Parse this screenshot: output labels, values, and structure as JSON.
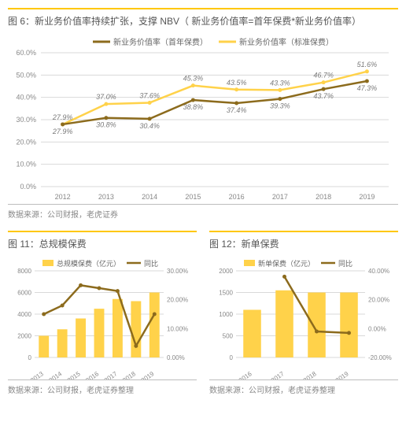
{
  "fig6": {
    "title": "图 6：新业务价值率持续扩张，支撑 NBV（ 新业务价值率=首年保费*新业务价值率）",
    "type": "line",
    "legend": {
      "s1": "新业务价值率（首年保费）",
      "s2": "新业务价值率（标准保费）"
    },
    "categories": [
      "2012",
      "2013",
      "2014",
      "2015",
      "2016",
      "2017",
      "2018",
      "2019"
    ],
    "series1": [
      27.9,
      30.8,
      30.4,
      38.8,
      37.4,
      39.3,
      43.7,
      47.3
    ],
    "series2": [
      27.9,
      37.0,
      37.6,
      45.3,
      43.5,
      43.3,
      46.7,
      51.6
    ],
    "colors": {
      "s1": "#8c6b1d",
      "s2": "#ffd24a"
    },
    "label_color": "#7a7a7a",
    "ylim": [
      0,
      60
    ],
    "ytick_step": 10,
    "grid_color": "#d9d9d9",
    "bg": "#ffffff",
    "source": "数据来源：公司财报，老虎证券"
  },
  "fig11": {
    "title": "图 11：总规模保费",
    "type": "bar+line",
    "legend": {
      "bar": "总规模保费（亿元）",
      "line": "同比"
    },
    "categories": [
      "2013",
      "2014",
      "2015",
      "2016",
      "2017",
      "2018",
      "2019"
    ],
    "bars": [
      2000,
      2600,
      3600,
      4500,
      5400,
      5200,
      6000
    ],
    "line_pct": [
      15,
      18,
      25,
      24,
      23,
      4,
      15
    ],
    "colors": {
      "bar": "#ffd24a",
      "line": "#8c6b1d"
    },
    "y1": {
      "lim": [
        0,
        8000
      ],
      "step": 2000
    },
    "y2": {
      "lim": [
        0,
        30
      ],
      "step": 10
    },
    "grid_color": "#d9d9d9",
    "source": "数据来源：公司财报，老虎证券整理"
  },
  "fig12": {
    "title": "图 12：新单保费",
    "type": "bar+line",
    "legend": {
      "bar": "新单保费（亿元）",
      "line": "同比"
    },
    "categories": [
      "2016",
      "2017",
      "2018",
      "2019"
    ],
    "bars": [
      1100,
      1550,
      1500,
      1500
    ],
    "line_pct": [
      null,
      36,
      -2,
      -3
    ],
    "colors": {
      "bar": "#ffd24a",
      "line": "#8c6b1d"
    },
    "y1": {
      "lim": [
        0,
        2000
      ],
      "step": 500
    },
    "y2": {
      "lim": [
        -20,
        40
      ],
      "step": 20
    },
    "grid_color": "#d9d9d9",
    "source": "数据来源：公司财报，老虎证券整理"
  }
}
